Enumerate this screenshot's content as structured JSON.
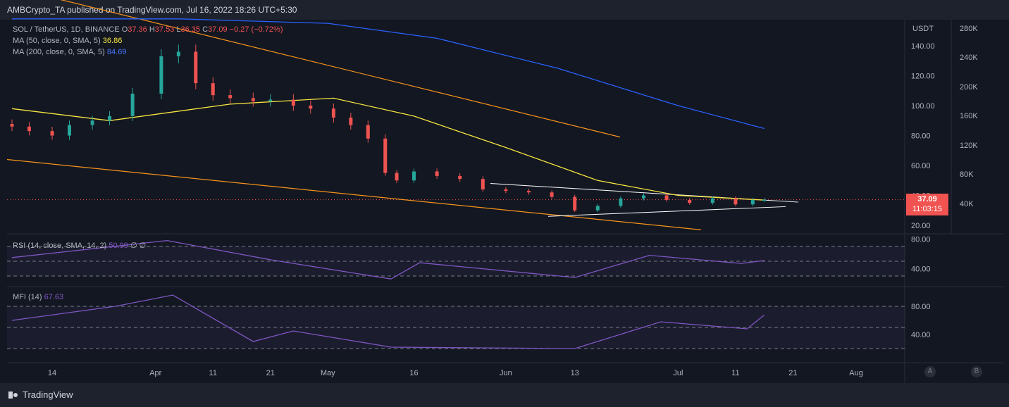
{
  "publish_line": "AMBCrypto_TA published on TradingView.com, Jul 16, 2022 18:26 UTC+5:30",
  "legend": {
    "symbol": "SOL / TetherUS, 1D, BINANCE",
    "o_label": "O",
    "o": "37.36",
    "h_label": "H",
    "h": "37.53",
    "l_label": "L",
    "l": "36.35",
    "c_label": "C",
    "c": "37.09",
    "change": "−0.27 (−0.72%)",
    "ma50_label": "MA (50, close, 0, SMA, 5)",
    "ma50_value": "36.86",
    "ma200_label": "MA (200, close, 0, SMA, 5)",
    "ma200_value": "84.69"
  },
  "rsi": {
    "label": "RSI (14, close, SMA, 14, 2)",
    "value": "50.99",
    "v2": "∅",
    "v3": "∅"
  },
  "mfi": {
    "label": "MFI (14)",
    "value": "67.63"
  },
  "price_axis": {
    "unit": "USDT",
    "ticks": [
      "140.00",
      "120.00",
      "100.00",
      "80.00",
      "60.00",
      "40.00",
      "20.00"
    ],
    "last_price": "37.09",
    "countdown": "11:03:15"
  },
  "volume_axis": {
    "ticks": [
      "280K",
      "240K",
      "200K",
      "160K",
      "120K",
      "80K",
      "40K"
    ]
  },
  "rsi_axis": {
    "ticks": [
      "80.00",
      "40.00"
    ]
  },
  "mfi_axis": {
    "ticks": [
      "80.00",
      "40.00"
    ]
  },
  "time_axis": {
    "ticks": [
      "14",
      "Apr",
      "11",
      "21",
      "May",
      "16",
      "Jun",
      "13",
      "Jul",
      "11",
      "21",
      "Aug"
    ]
  },
  "footer": {
    "brand": "TradingView",
    "btn_a": "A",
    "btn_b": "B"
  },
  "colors": {
    "up": "#26a69a",
    "down": "#ef5350",
    "ma50": "#f7e53e",
    "ma200": "#2962ff",
    "channel": "#f7931a",
    "triangle": "#ffffff",
    "osc": "#7e57c2"
  },
  "chart_data": {
    "type": "candlestick",
    "price_unit": "USDT",
    "ylim": [
      15,
      175
    ],
    "candles_sampled": [
      {
        "d": "Mar 7",
        "c": 86
      },
      {
        "d": "Mar 10",
        "c": 83
      },
      {
        "d": "Mar 14",
        "c": 80
      },
      {
        "d": "Mar 17",
        "c": 87
      },
      {
        "d": "Mar 21",
        "c": 90
      },
      {
        "d": "Mar 24",
        "c": 93
      },
      {
        "d": "Mar 28",
        "c": 108
      },
      {
        "d": "Apr 2",
        "c": 133
      },
      {
        "d": "Apr 5",
        "c": 136
      },
      {
        "d": "Apr 8",
        "c": 115
      },
      {
        "d": "Apr 11",
        "c": 107
      },
      {
        "d": "Apr 14",
        "c": 105
      },
      {
        "d": "Apr 18",
        "c": 103
      },
      {
        "d": "Apr 21",
        "c": 104
      },
      {
        "d": "Apr 25",
        "c": 100
      },
      {
        "d": "Apr 28",
        "c": 98
      },
      {
        "d": "May 2",
        "c": 92
      },
      {
        "d": "May 5",
        "c": 87
      },
      {
        "d": "May 8",
        "c": 78
      },
      {
        "d": "May 11",
        "c": 55
      },
      {
        "d": "May 13",
        "c": 50
      },
      {
        "d": "May 16",
        "c": 56
      },
      {
        "d": "May 20",
        "c": 53
      },
      {
        "d": "May 24",
        "c": 51
      },
      {
        "d": "May 28",
        "c": 44
      },
      {
        "d": "Jun 1",
        "c": 43
      },
      {
        "d": "Jun 5",
        "c": 42
      },
      {
        "d": "Jun 9",
        "c": 39
      },
      {
        "d": "Jun 13",
        "c": 30
      },
      {
        "d": "Jun 17",
        "c": 33
      },
      {
        "d": "Jun 21",
        "c": 38
      },
      {
        "d": "Jun 25",
        "c": 40
      },
      {
        "d": "Jun 29",
        "c": 37
      },
      {
        "d": "Jul 3",
        "c": 35
      },
      {
        "d": "Jul 7",
        "c": 38
      },
      {
        "d": "Jul 11",
        "c": 34
      },
      {
        "d": "Jul 14",
        "c": 37
      },
      {
        "d": "Jul 16",
        "c": 37.09
      }
    ],
    "ma50": [
      {
        "d": "Mar 7",
        "v": 98
      },
      {
        "d": "Mar 24",
        "v": 90
      },
      {
        "d": "Apr 14",
        "v": 101
      },
      {
        "d": "May 2",
        "v": 105
      },
      {
        "d": "May 16",
        "v": 93
      },
      {
        "d": "Jun 1",
        "v": 72
      },
      {
        "d": "Jun 17",
        "v": 50
      },
      {
        "d": "Jul 1",
        "v": 40
      },
      {
        "d": "Jul 16",
        "v": 36.86
      }
    ],
    "ma200": [
      {
        "d": "Mar 7",
        "v": 158
      },
      {
        "d": "Apr 5",
        "v": 158
      },
      {
        "d": "May 1",
        "v": 155
      },
      {
        "d": "May 20",
        "v": 145
      },
      {
        "d": "Jun 10",
        "v": 125
      },
      {
        "d": "Jul 1",
        "v": 100
      },
      {
        "d": "Jul 16",
        "v": 84.69
      }
    ],
    "rsi": [
      {
        "d": "Mar 7",
        "v": 55
      },
      {
        "d": "Apr 3",
        "v": 78
      },
      {
        "d": "Apr 21",
        "v": 52
      },
      {
        "d": "May 12",
        "v": 26
      },
      {
        "d": "May 17",
        "v": 48
      },
      {
        "d": "Jun 13",
        "v": 28
      },
      {
        "d": "Jun 26",
        "v": 58
      },
      {
        "d": "Jul 12",
        "v": 47
      },
      {
        "d": "Jul 16",
        "v": 50.99
      }
    ],
    "mfi": [
      {
        "d": "Mar 7",
        "v": 60
      },
      {
        "d": "Mar 25",
        "v": 80
      },
      {
        "d": "Apr 4",
        "v": 96
      },
      {
        "d": "Apr 18",
        "v": 30
      },
      {
        "d": "Apr 25",
        "v": 45
      },
      {
        "d": "May 12",
        "v": 22
      },
      {
        "d": "Jun 13",
        "v": 20
      },
      {
        "d": "Jun 28",
        "v": 58
      },
      {
        "d": "Jul 13",
        "v": 48
      },
      {
        "d": "Jul 16",
        "v": 67.63
      }
    ],
    "rsi_levels": [
      70,
      50,
      30
    ],
    "mfi_levels": [
      80,
      50,
      20
    ]
  }
}
